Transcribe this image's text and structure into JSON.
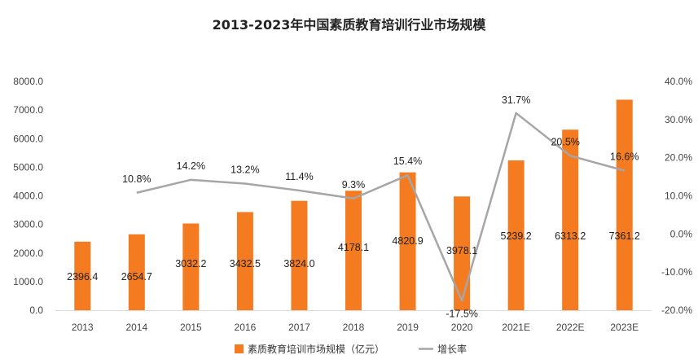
{
  "chart_data": {
    "type": "bar",
    "title": "2013-2023年中国素质教育培训行业市场规模",
    "categories": [
      "2013",
      "2014",
      "2015",
      "2016",
      "2017",
      "2018",
      "2019",
      "2020",
      "2021E",
      "2022E",
      "2023E"
    ],
    "series": [
      {
        "name": "素质教育培训市场规模（亿元）",
        "type": "bar",
        "axis": "left",
        "color": "#F47B20",
        "values": [
          2396.4,
          2654.7,
          3032.2,
          3432.5,
          3824.0,
          4178.1,
          4820.9,
          3978.1,
          5239.2,
          6313.2,
          7361.2
        ],
        "labels": [
          "2396.4",
          "2654.7",
          "3032.2",
          "3432.5",
          "3824.0",
          "4178.1",
          "4820.9",
          "3978.1",
          "5239.2",
          "6313.2",
          "7361.2"
        ]
      },
      {
        "name": "增长率",
        "type": "line",
        "axis": "right",
        "color": "#A6A6A6",
        "values": [
          null,
          10.8,
          14.2,
          13.2,
          11.4,
          9.3,
          15.4,
          -17.5,
          31.7,
          20.5,
          16.6
        ],
        "labels": [
          "",
          "10.8%",
          "14.2%",
          "13.2%",
          "11.4%",
          "9.3%",
          "15.4%",
          "-17.5%",
          "31.7%",
          "20.5%",
          "16.6%"
        ]
      }
    ],
    "y_left": {
      "min": 0,
      "max": 8000,
      "step": 1000,
      "tick_labels": [
        "0.0",
        "1000.0",
        "2000.0",
        "3000.0",
        "4000.0",
        "5000.0",
        "6000.0",
        "7000.0",
        "8000.0"
      ]
    },
    "y_right": {
      "min": -20,
      "max": 40,
      "step": 10,
      "tick_labels": [
        "-20.0%",
        "-10.0%",
        "0.0%",
        "10.0%",
        "20.0%",
        "30.0%",
        "40.0%"
      ]
    },
    "grid": false,
    "legend_position": "bottom"
  }
}
